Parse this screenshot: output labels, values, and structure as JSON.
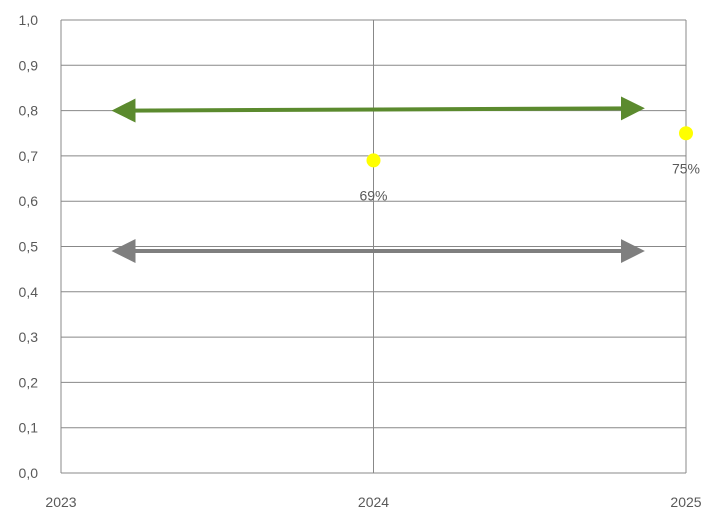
{
  "chart_data": {
    "type": "scatter",
    "xlim": [
      2023,
      2025
    ],
    "ylim": [
      0,
      1
    ],
    "ytick_step": 0.1,
    "x_ticks": [
      "2023",
      "2024",
      "2025"
    ],
    "y_ticks": [
      "0,0",
      "0,1",
      "0,2",
      "0,3",
      "0,4",
      "0,5",
      "0,6",
      "0,7",
      "0,8",
      "0,9",
      "1,0"
    ],
    "grid": true,
    "points": [
      {
        "x": 2024,
        "y": 0.69,
        "label": "69%"
      },
      {
        "x": 2025,
        "y": 0.75,
        "label": "75%"
      }
    ],
    "arrows": [
      {
        "x_start": 2023.2,
        "x_end": 2024.83,
        "y_start": 0.8,
        "y_end": 0.805,
        "color": "#5b8a2e"
      },
      {
        "x_start": 2023.2,
        "x_end": 2024.83,
        "y_start": 0.49,
        "y_end": 0.49,
        "color": "#7f7f7f"
      }
    ],
    "colors": {
      "point": "#ffff00",
      "grid": "#888888",
      "text": "#595959"
    }
  }
}
